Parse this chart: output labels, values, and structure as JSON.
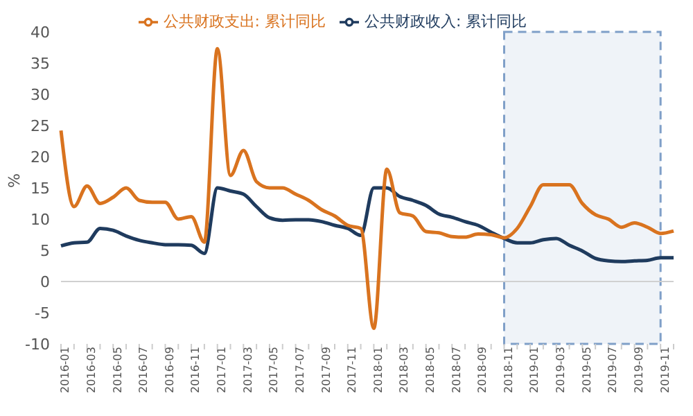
{
  "chart_data": {
    "type": "line",
    "ylabel": "%",
    "categories": [
      "2016-01",
      null,
      "2016-03",
      null,
      "2016-05",
      null,
      "2016-07",
      null,
      "2016-09",
      null,
      "2016-11",
      null,
      "2017-01",
      null,
      "2017-03",
      null,
      "2017-05",
      null,
      "2017-07",
      null,
      "2017-09",
      null,
      "2017-11",
      null,
      "2018-01",
      null,
      "2018-03",
      null,
      "2018-05",
      null,
      "2018-07",
      null,
      "2018-09",
      null,
      "2018-11",
      null,
      "2019-01",
      null,
      "2019-03",
      null,
      "2019-05",
      null,
      "2019-07",
      null,
      "2019-09",
      null,
      "2019-11",
      null
    ],
    "series": [
      {
        "name": "公共财政收入: 累计同比",
        "color": "#1f3b5e",
        "values": [
          5.7,
          6.2,
          6.3,
          8.5,
          8.2,
          7.3,
          6.6,
          6.2,
          5.9,
          5.9,
          5.8,
          4.5,
          15,
          14.5,
          14,
          12,
          10.2,
          9.8,
          9.9,
          9.9,
          9.6,
          9,
          8.5,
          7.4,
          15,
          15,
          13.6,
          13,
          12.2,
          10.8,
          10.3,
          9.6,
          9,
          7.9,
          6.9,
          6.2,
          6.2,
          6.7,
          6.9,
          5.8,
          4.9,
          3.7,
          3.3,
          3.2,
          3.3,
          3.4,
          3.8,
          3.8
        ]
      },
      {
        "name": "公共财政支出: 累计同比",
        "color": "#d9731f",
        "values": [
          24.2,
          12,
          15.3,
          12.5,
          13.5,
          15,
          13,
          12.7,
          12.7,
          10,
          10.4,
          6.3,
          37.3,
          17,
          21,
          16,
          15,
          15,
          14,
          13,
          11.5,
          10.5,
          9,
          8.5,
          -7.5,
          18,
          11,
          10.5,
          8,
          7.8,
          7.2,
          7.1,
          7.6,
          7.5,
          7,
          8.5,
          12,
          15.5,
          15.5,
          15.5,
          12.5,
          10.7,
          10,
          8.7,
          9.4,
          8.7,
          7.7,
          8.1
        ]
      }
    ],
    "ylim": [
      -10,
      40
    ],
    "yticks": [
      -10,
      -5,
      0,
      5,
      10,
      15,
      20,
      25,
      30,
      35,
      40
    ],
    "grid": false,
    "legend": "top",
    "marker": "none",
    "line_style": "solid",
    "ref_lines": [
      {
        "axis": "y",
        "value": 0,
        "color": "#d0d0d0"
      }
    ],
    "bands": [
      {
        "axis": "x",
        "from": "2018-11",
        "to": "2019-11",
        "color": "#7f9fc8"
      }
    ]
  }
}
